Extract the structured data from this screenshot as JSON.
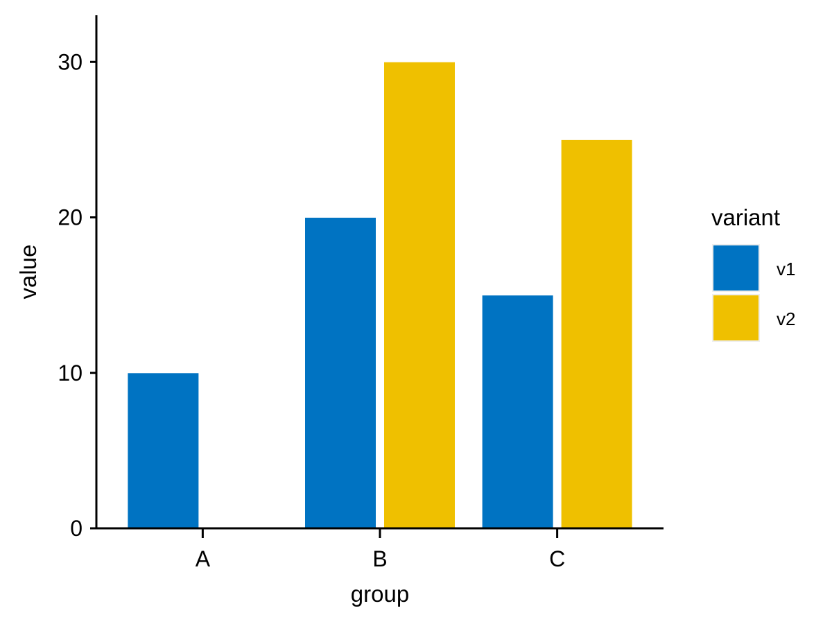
{
  "chart_data": {
    "type": "bar",
    "categories": [
      "A",
      "B",
      "C"
    ],
    "series": [
      {
        "name": "v1",
        "values": [
          10,
          20,
          15
        ],
        "color": "#0073C2"
      },
      {
        "name": "v2",
        "values": [
          null,
          30,
          25
        ],
        "color": "#EFC000"
      }
    ],
    "xlabel": "group",
    "ylabel": "value",
    "ylim": [
      0,
      33
    ],
    "yticks": [
      0,
      10,
      20,
      30
    ],
    "legend": {
      "title": "variant",
      "placement": "right"
    },
    "grid": false
  }
}
